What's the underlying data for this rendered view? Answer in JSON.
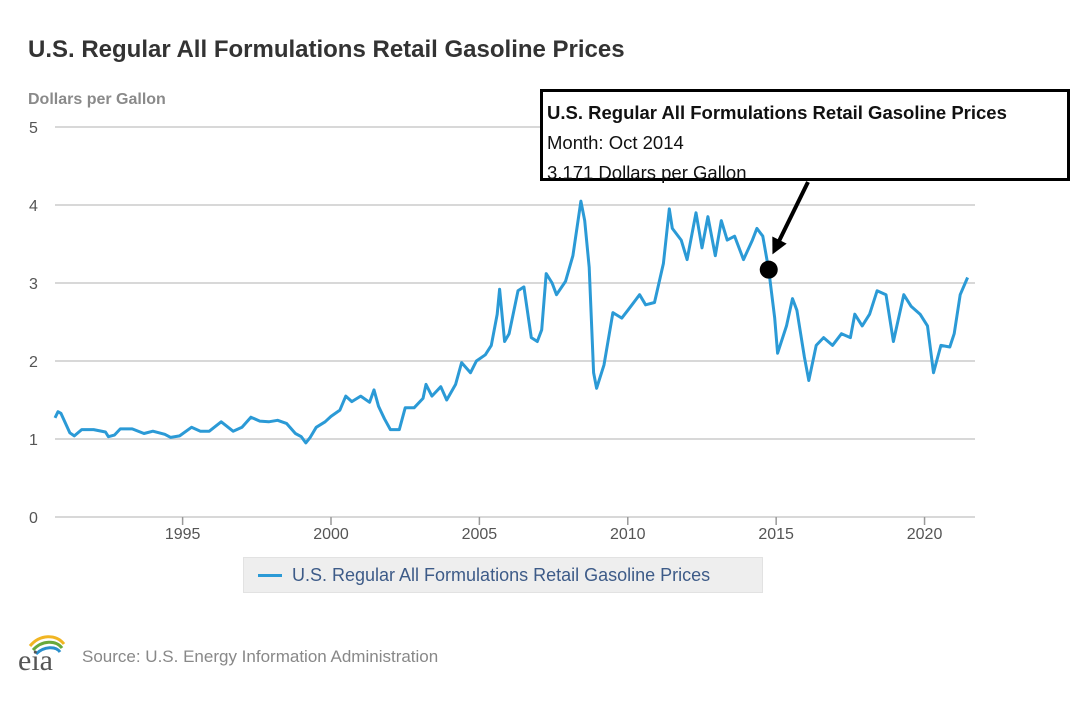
{
  "chart_data": {
    "type": "line",
    "title": "U.S. Regular All Formulations Retail Gasoline Prices",
    "ylabel": "Dollars per Gallon",
    "xlabel": "",
    "ylim": [
      0,
      5
    ],
    "xlim": [
      1990.7,
      2021.7
    ],
    "yticks": [
      "0",
      "1",
      "2",
      "3",
      "4",
      "5"
    ],
    "xticks": [
      "1995",
      "2000",
      "2005",
      "2010",
      "2015",
      "2020"
    ],
    "grid": true,
    "legend_position": "bottom-center",
    "series": [
      {
        "name": "U.S. Regular All Formulations Retail Gasoline Prices",
        "color": "#2b9ad6",
        "points": [
          [
            1990.7,
            1.27
          ],
          [
            1990.8,
            1.35
          ],
          [
            1990.9,
            1.33
          ],
          [
            1991.2,
            1.08
          ],
          [
            1991.35,
            1.04
          ],
          [
            1991.6,
            1.12
          ],
          [
            1992.0,
            1.12
          ],
          [
            1992.4,
            1.09
          ],
          [
            1992.5,
            1.03
          ],
          [
            1992.7,
            1.05
          ],
          [
            1992.9,
            1.13
          ],
          [
            1993.3,
            1.13
          ],
          [
            1993.7,
            1.07
          ],
          [
            1994.0,
            1.1
          ],
          [
            1994.4,
            1.06
          ],
          [
            1994.6,
            1.02
          ],
          [
            1994.9,
            1.04
          ],
          [
            1995.3,
            1.15
          ],
          [
            1995.6,
            1.1
          ],
          [
            1995.9,
            1.1
          ],
          [
            1996.3,
            1.22
          ],
          [
            1996.7,
            1.1
          ],
          [
            1997.0,
            1.15
          ],
          [
            1997.3,
            1.28
          ],
          [
            1997.6,
            1.23
          ],
          [
            1997.9,
            1.22
          ],
          [
            1998.2,
            1.24
          ],
          [
            1998.5,
            1.2
          ],
          [
            1998.8,
            1.07
          ],
          [
            1999.0,
            1.03
          ],
          [
            1999.15,
            0.95
          ],
          [
            1999.3,
            1.02
          ],
          [
            1999.5,
            1.15
          ],
          [
            1999.8,
            1.22
          ],
          [
            2000.0,
            1.29
          ],
          [
            2000.3,
            1.37
          ],
          [
            2000.5,
            1.55
          ],
          [
            2000.7,
            1.48
          ],
          [
            2001.0,
            1.55
          ],
          [
            2001.3,
            1.47
          ],
          [
            2001.45,
            1.63
          ],
          [
            2001.6,
            1.42
          ],
          [
            2001.8,
            1.26
          ],
          [
            2002.0,
            1.12
          ],
          [
            2002.3,
            1.12
          ],
          [
            2002.5,
            1.4
          ],
          [
            2002.8,
            1.4
          ],
          [
            2003.1,
            1.52
          ],
          [
            2003.2,
            1.7
          ],
          [
            2003.4,
            1.55
          ],
          [
            2003.7,
            1.67
          ],
          [
            2003.9,
            1.5
          ],
          [
            2004.2,
            1.7
          ],
          [
            2004.4,
            1.98
          ],
          [
            2004.7,
            1.85
          ],
          [
            2004.9,
            2.0
          ],
          [
            2005.2,
            2.08
          ],
          [
            2005.4,
            2.2
          ],
          [
            2005.6,
            2.6
          ],
          [
            2005.68,
            2.92
          ],
          [
            2005.85,
            2.25
          ],
          [
            2006.0,
            2.35
          ],
          [
            2006.3,
            2.9
          ],
          [
            2006.5,
            2.95
          ],
          [
            2006.75,
            2.3
          ],
          [
            2006.95,
            2.25
          ],
          [
            2007.1,
            2.4
          ],
          [
            2007.25,
            3.12
          ],
          [
            2007.45,
            3.0
          ],
          [
            2007.6,
            2.85
          ],
          [
            2007.9,
            3.02
          ],
          [
            2008.15,
            3.35
          ],
          [
            2008.42,
            4.05
          ],
          [
            2008.55,
            3.8
          ],
          [
            2008.7,
            3.2
          ],
          [
            2008.85,
            1.85
          ],
          [
            2008.95,
            1.65
          ],
          [
            2009.2,
            1.95
          ],
          [
            2009.5,
            2.62
          ],
          [
            2009.8,
            2.55
          ],
          [
            2010.0,
            2.65
          ],
          [
            2010.4,
            2.85
          ],
          [
            2010.6,
            2.72
          ],
          [
            2010.9,
            2.75
          ],
          [
            2011.2,
            3.25
          ],
          [
            2011.4,
            3.95
          ],
          [
            2011.5,
            3.7
          ],
          [
            2011.8,
            3.55
          ],
          [
            2012.0,
            3.3
          ],
          [
            2012.3,
            3.9
          ],
          [
            2012.5,
            3.45
          ],
          [
            2012.7,
            3.85
          ],
          [
            2012.95,
            3.35
          ],
          [
            2013.15,
            3.8
          ],
          [
            2013.35,
            3.55
          ],
          [
            2013.6,
            3.6
          ],
          [
            2013.9,
            3.3
          ],
          [
            2014.2,
            3.55
          ],
          [
            2014.35,
            3.7
          ],
          [
            2014.55,
            3.6
          ],
          [
            2014.75,
            3.17
          ],
          [
            2014.95,
            2.55
          ],
          [
            2015.05,
            2.1
          ],
          [
            2015.35,
            2.45
          ],
          [
            2015.55,
            2.8
          ],
          [
            2015.7,
            2.65
          ],
          [
            2015.95,
            2.05
          ],
          [
            2016.1,
            1.75
          ],
          [
            2016.35,
            2.2
          ],
          [
            2016.6,
            2.3
          ],
          [
            2016.9,
            2.2
          ],
          [
            2017.2,
            2.35
          ],
          [
            2017.5,
            2.3
          ],
          [
            2017.65,
            2.6
          ],
          [
            2017.9,
            2.45
          ],
          [
            2018.15,
            2.6
          ],
          [
            2018.4,
            2.9
          ],
          [
            2018.7,
            2.85
          ],
          [
            2018.95,
            2.25
          ],
          [
            2019.3,
            2.85
          ],
          [
            2019.55,
            2.7
          ],
          [
            2019.85,
            2.6
          ],
          [
            2020.1,
            2.45
          ],
          [
            2020.3,
            1.85
          ],
          [
            2020.55,
            2.2
          ],
          [
            2020.85,
            2.18
          ],
          [
            2021.0,
            2.35
          ],
          [
            2021.2,
            2.85
          ],
          [
            2021.45,
            3.07
          ]
        ]
      }
    ],
    "tooltip": {
      "title": "U.S. Regular All Formulations Retail Gasoline Prices",
      "month": "Month: Oct 2014",
      "value_text": "3.171 Dollars per Gallon",
      "point": [
        2014.75,
        3.171
      ]
    },
    "source": "Source: U.S. Energy Information Administration",
    "logo_text": "eia"
  },
  "colors": {
    "line": "#2b9ad6",
    "grid": "#cccccc",
    "title": "#333333",
    "legend_text": "#3d5b88",
    "logo_swoosh_1": "#f1b522",
    "logo_swoosh_2": "#69a93b",
    "logo_swoosh_3": "#2a8fcc"
  }
}
